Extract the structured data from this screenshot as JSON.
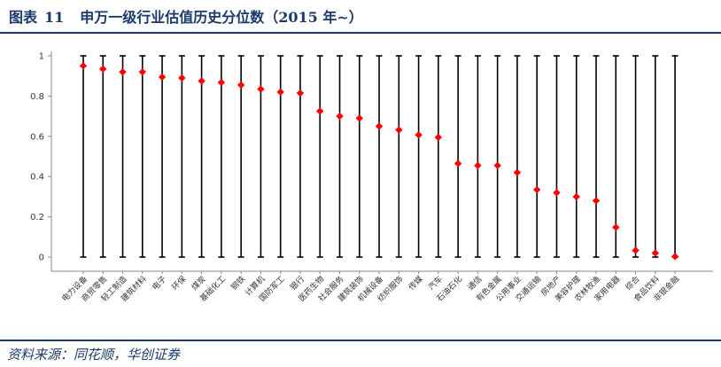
{
  "header": {
    "label": "图表",
    "number": "11",
    "title": "申万一级行业估值历史分位数（2015 年~）"
  },
  "footer": {
    "source": "资料来源：同花顺，华创证券"
  },
  "colors": {
    "accent": "#1a3a6b",
    "marker": "#ff0000",
    "line": "#000000"
  },
  "chart_data": {
    "type": "scatter",
    "title": "",
    "xlabel": "",
    "ylabel": "",
    "ylim": [
      0,
      1
    ],
    "yticks": [
      "0",
      "0.2",
      "0.4",
      "0.6",
      "0.8",
      "1"
    ],
    "grid": false,
    "legend": "none",
    "range_per_category": [
      0,
      1
    ],
    "categories": [
      "电力设备",
      "商贸零售",
      "轻工制造",
      "建筑材料",
      "电子",
      "环保",
      "煤炭",
      "基础化工",
      "钢铁",
      "计算机",
      "国防军工",
      "银行",
      "医药生物",
      "社会服务",
      "建筑装饰",
      "机械设备",
      "纺织服饰",
      "传媒",
      "汽车",
      "石油石化",
      "通信",
      "有色金属",
      "公用事业",
      "交通运输",
      "房地产",
      "美容护理",
      "农林牧渔",
      "家用电器",
      "综合",
      "食品饮料",
      "非银金融"
    ],
    "values": [
      0.95,
      0.935,
      0.92,
      0.92,
      0.895,
      0.89,
      0.875,
      0.868,
      0.855,
      0.835,
      0.82,
      0.815,
      0.725,
      0.7,
      0.69,
      0.65,
      0.632,
      0.607,
      0.595,
      0.465,
      0.455,
      0.455,
      0.42,
      0.335,
      0.32,
      0.3,
      0.28,
      0.148,
      0.033,
      0.02,
      0.003
    ]
  }
}
